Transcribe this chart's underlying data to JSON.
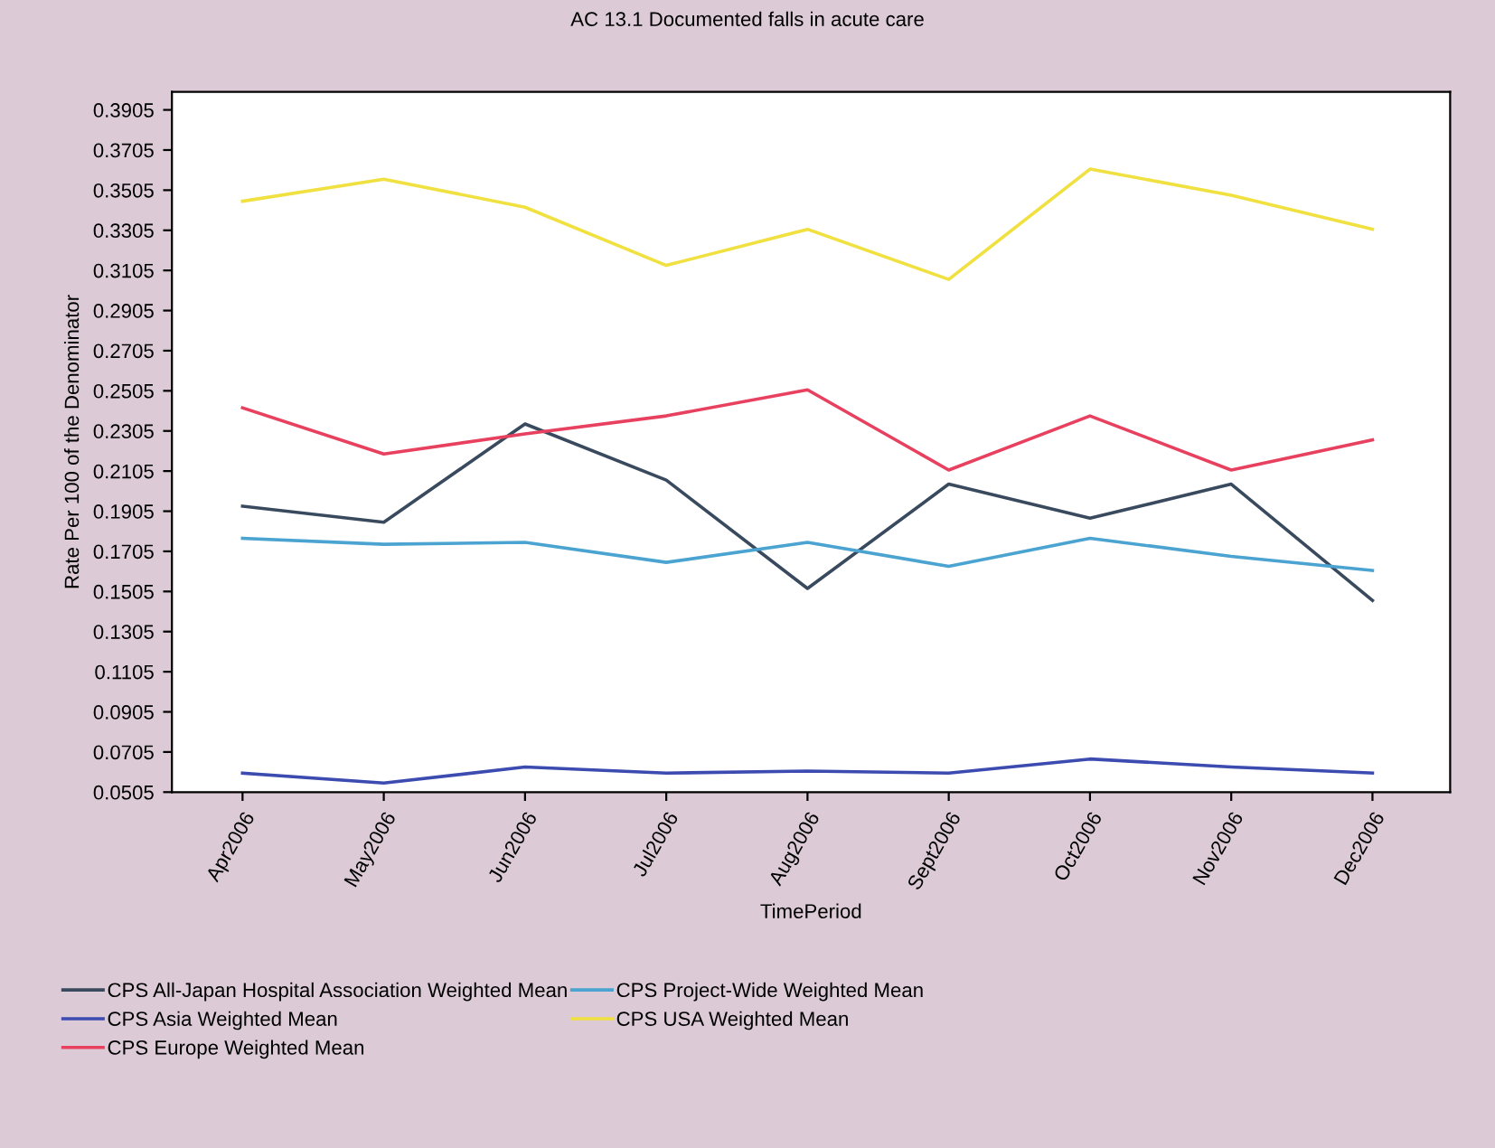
{
  "chart_data": {
    "type": "line",
    "title": "AC 13.1 Documented falls in acute care",
    "xlabel": "TimePeriod",
    "ylabel": "Rate Per 100 of the Denominator",
    "categories": [
      "Apr2006",
      "May2006",
      "Jun2006",
      "Jul2006",
      "Aug2006",
      "Sept2006",
      "Oct2006",
      "Nov2006",
      "Dec2006"
    ],
    "series": [
      {
        "name": "CPS All-Japan Hospital Association Weighted Mean",
        "color": "#3a4a5e",
        "values": [
          0.193,
          0.185,
          0.234,
          0.206,
          0.152,
          0.204,
          0.187,
          0.204,
          0.146
        ]
      },
      {
        "name": "CPS Asia Weighted Mean",
        "color": "#3c4bb0",
        "values": [
          0.06,
          0.055,
          0.063,
          0.06,
          0.061,
          0.06,
          0.067,
          0.063,
          0.06
        ]
      },
      {
        "name": "CPS Europe Weighted Mean",
        "color": "#e8405f",
        "values": [
          0.242,
          0.219,
          0.229,
          0.238,
          0.251,
          0.211,
          0.238,
          0.211,
          0.226
        ]
      },
      {
        "name": "CPS Project-Wide Weighted Mean",
        "color": "#4aa3d0",
        "values": [
          0.177,
          0.174,
          0.175,
          0.165,
          0.175,
          0.163,
          0.177,
          0.168,
          0.161
        ]
      },
      {
        "name": "CPS USA Weighted Mean",
        "color": "#f0e040",
        "values": [
          0.345,
          0.356,
          0.342,
          0.313,
          0.331,
          0.306,
          0.361,
          0.348,
          0.331
        ]
      }
    ],
    "ylim": [
      0.0505,
      0.3995
    ],
    "yticks": [
      0.0505,
      0.0705,
      0.0905,
      0.1105,
      0.1305,
      0.1505,
      0.1705,
      0.1905,
      0.2105,
      0.2305,
      0.2505,
      0.2705,
      0.2905,
      0.3105,
      0.3305,
      0.3505,
      0.3705,
      0.3905
    ],
    "grid": false,
    "legend": "bottom",
    "marker": "none",
    "line_style": "solid"
  }
}
